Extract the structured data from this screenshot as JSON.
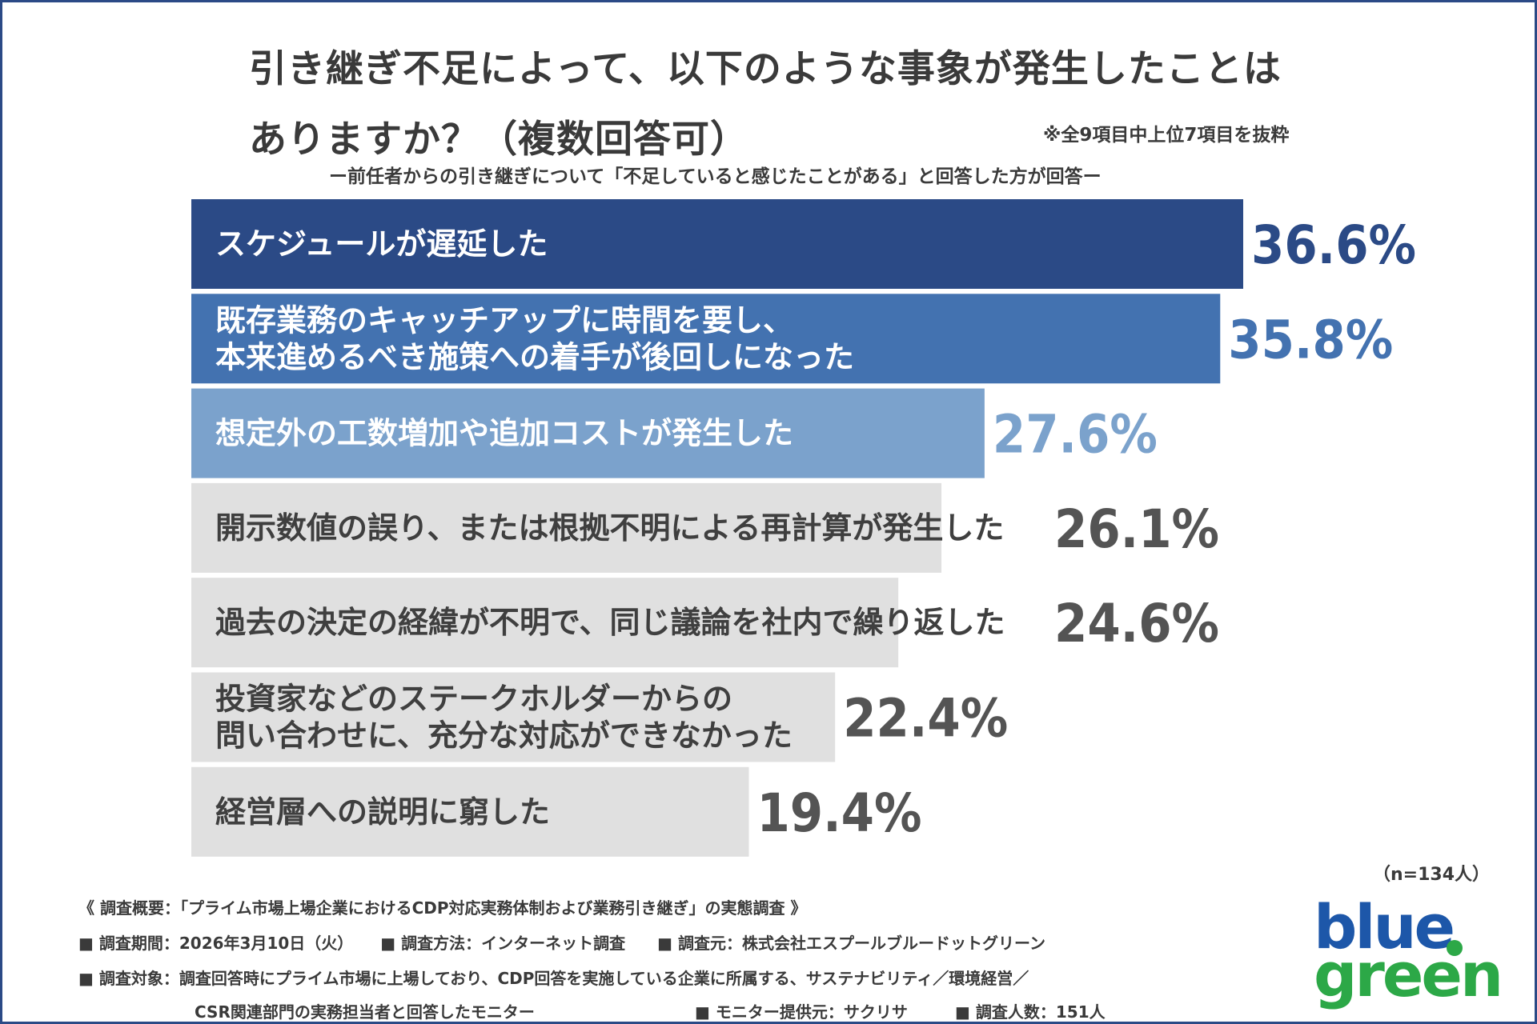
{
  "title_lines": [
    "引き継ぎ不足によって、以下のような事象が発生したことは",
    "ありますか？（複数回答可）"
  ],
  "note": "※全9項目中上位7項目を抜粋",
  "subtitle": "ー前任者からの引き継ぎについて「不足していると感じたことがある」と回答した方が回答ー",
  "sample_size": "（n=134人）",
  "colors": {
    "bar_1": "#2b4a86",
    "bar_2": "#4372b0",
    "bar_3": "#7ba2cc",
    "bar_other": "#e0e0e0",
    "label_dark": "#3f3f3f",
    "value_dark": "#545454",
    "frame": "#2b4a86"
  },
  "chart_data": {
    "type": "bar",
    "orientation": "horizontal",
    "unit": "%",
    "xlim": [
      0,
      36.6
    ],
    "categories": [
      [
        "スケジュールが遅延した"
      ],
      [
        "既存業務のキャッチアップに時間を要し、",
        "本来進めるべき施策への着手が後回しになった"
      ],
      [
        "想定外の工数増加や追加コストが発生した"
      ],
      [
        "開示数値の誤り、または根拠不明による再計算が発生した"
      ],
      [
        "過去の決定の経緯が不明で、同じ議論を社内で繰り返した"
      ],
      [
        "投資家などのステークホルダーからの",
        "問い合わせに、充分な対応ができなかった"
      ],
      [
        "経営層への説明に窮した"
      ]
    ],
    "values": [
      36.6,
      35.8,
      27.6,
      26.1,
      24.6,
      22.4,
      19.4
    ],
    "value_labels": [
      "36.6%",
      "35.8%",
      "27.6%",
      "26.1%",
      "24.6%",
      "22.4%",
      "19.4%"
    ]
  },
  "footer": {
    "overview": "《 調査概要：「プライム市場上場企業におけるCDP対応実務体制および業務引き継ぎ」の実態調査 》",
    "period": "■ 調査期間：2026年3月10日（火）",
    "method": "■ 調査方法：インターネット調査",
    "organizer": "■ 調査元：株式会社エスプールブルードットグリーン",
    "target_line1": "■ 調査対象：調査回答時にプライム市場に上場しており、CDP回答を実施している企業に所属する、サステナビリティ／環境経営／",
    "target_line2": "CSR関連部門の実務担当者と回答したモニター",
    "monitor": "■ モニター提供元：サクリサ",
    "respondents": "■ 調査人数：151人"
  },
  "logo": {
    "line1": "blue",
    "line2": "green"
  }
}
